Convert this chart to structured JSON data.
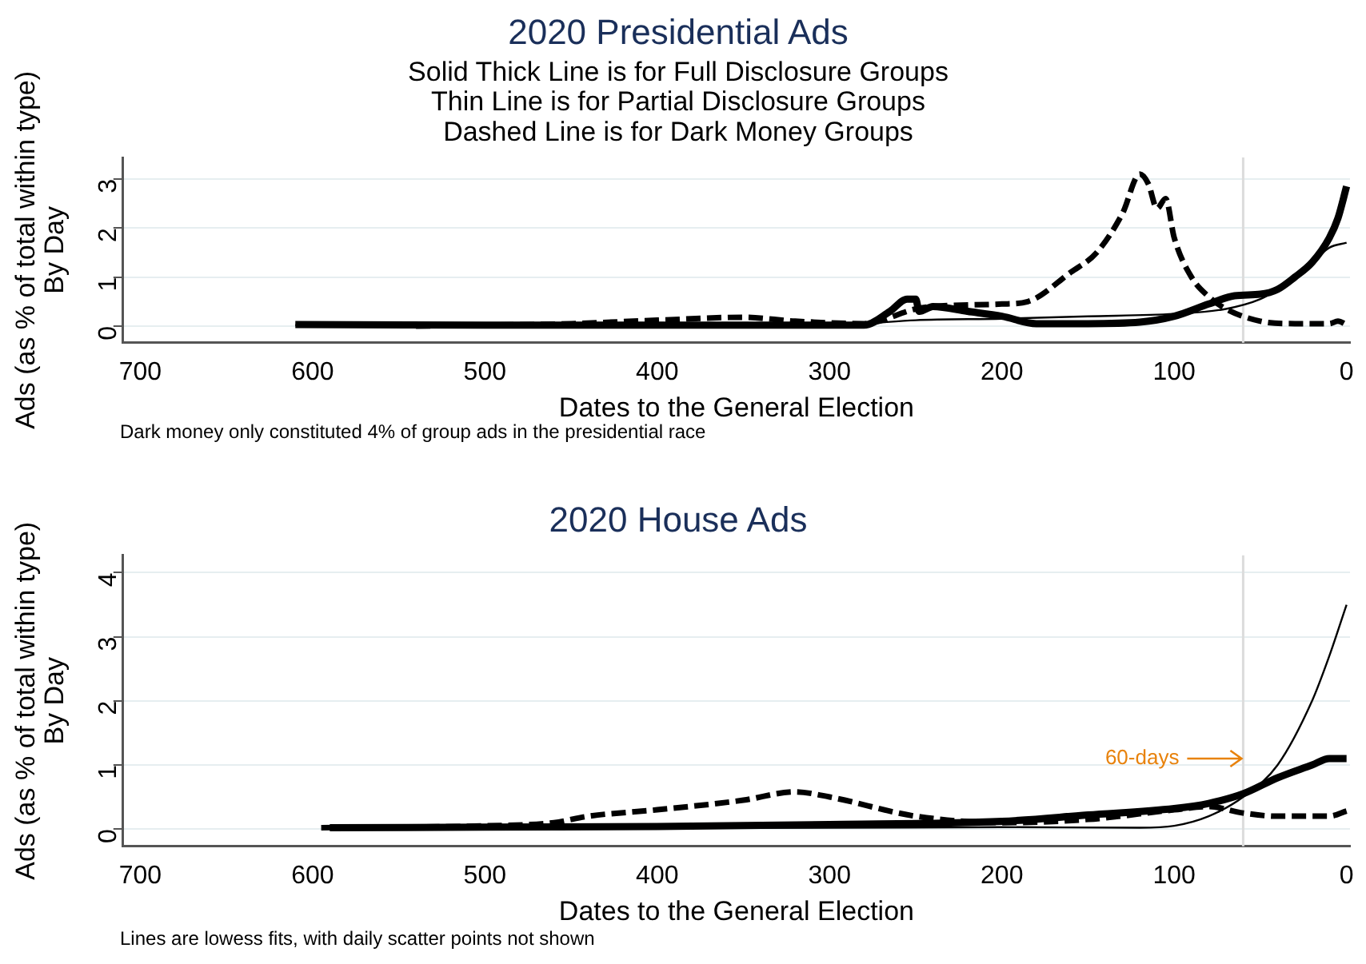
{
  "chart_data": [
    {
      "type": "line",
      "title": "2020 Presidential Ads",
      "subtitle": "Solid Thick Line is for Full Disclosure Groups\nThin Line is for Partial Disclosure Groups\nDashed Line is for Dark Money Groups",
      "xlabel": "Dates to the General Election",
      "ylabel": "Ads (as % of total within type)\nBy Day",
      "xlim": [
        710,
        -2
      ],
      "xticks": [
        700,
        600,
        500,
        400,
        300,
        200,
        100,
        0
      ],
      "ylim": [
        -0.34,
        3.44
      ],
      "yticks": [
        0,
        1,
        2,
        3
      ],
      "grid": "y",
      "legend": false,
      "marker": "none",
      "ref_lines": [
        {
          "axis": "x",
          "value": 60,
          "color": "#dcdcdc"
        }
      ],
      "annotations": [
        "Dark money only constituted 4% of group ads in the presidential race"
      ],
      "series": [
        {
          "color": "#000000",
          "line_style": "solid",
          "x": [
            610,
            500,
            400,
            300,
            280,
            265,
            255,
            250,
            248,
            240,
            220,
            200,
            180,
            150,
            120,
            100,
            80,
            65,
            50,
            40,
            30,
            20,
            10,
            5,
            0
          ],
          "values": [
            0.03,
            0.02,
            0.02,
            0.02,
            0.02,
            0.3,
            0.55,
            0.55,
            0.3,
            0.4,
            0.3,
            0.2,
            0.05,
            0.05,
            0.08,
            0.2,
            0.45,
            0.62,
            0.65,
            0.75,
            1.0,
            1.3,
            1.8,
            2.2,
            2.85
          ]
        },
        {
          "color": "#000000",
          "line_style": "solid",
          "x": [
            610,
            400,
            300,
            280,
            250,
            200,
            150,
            100,
            70,
            50,
            40,
            30,
            20,
            10,
            0
          ],
          "values": [
            0.02,
            0.02,
            0.02,
            0.05,
            0.12,
            0.15,
            0.2,
            0.25,
            0.35,
            0.55,
            0.75,
            1.0,
            1.3,
            1.6,
            1.7
          ]
        },
        {
          "color": "#000000",
          "line_style": "dashed",
          "x": [
            540,
            450,
            400,
            350,
            320,
            280,
            250,
            240,
            200,
            185,
            160,
            145,
            130,
            120,
            115,
            110,
            105,
            100,
            90,
            80,
            70,
            50,
            30,
            10,
            5,
            0
          ],
          "values": [
            0.0,
            0.05,
            0.12,
            0.18,
            0.1,
            0.05,
            0.35,
            0.4,
            0.45,
            0.5,
            1.1,
            1.5,
            2.3,
            3.1,
            2.9,
            2.4,
            2.6,
            1.8,
            1.0,
            0.6,
            0.35,
            0.1,
            0.05,
            0.05,
            0.1,
            0.03
          ]
        }
      ]
    },
    {
      "type": "line",
      "title": "2020 House Ads",
      "xlabel": "Dates to the General Election",
      "ylabel": "Ads (as % of total within type)\nBy Day",
      "xlim": [
        710,
        -2
      ],
      "xticks": [
        700,
        600,
        500,
        400,
        300,
        200,
        100,
        0
      ],
      "ylim": [
        -0.27,
        4.27
      ],
      "yticks": [
        0,
        1,
        2,
        3,
        4
      ],
      "grid": "y",
      "legend": false,
      "marker": "none",
      "ref_lines": [
        {
          "axis": "x",
          "value": 60,
          "color": "#dcdcdc"
        }
      ],
      "annotations": [
        {
          "text": "60-days",
          "x": 60,
          "y": 1.1
        },
        "Lines are lowess fits, with daily scatter points not shown"
      ],
      "series": [
        {
          "color": "#000000",
          "line_style": "solid",
          "x": [
            590,
            500,
            400,
            300,
            200,
            150,
            100,
            80,
            60,
            40,
            20,
            10,
            0
          ],
          "values": [
            0.02,
            0.03,
            0.04,
            0.07,
            0.12,
            0.22,
            0.32,
            0.4,
            0.55,
            0.8,
            1.0,
            1.1,
            1.1
          ]
        },
        {
          "color": "#000000",
          "line_style": "solid",
          "x": [
            590,
            300,
            200,
            120,
            100,
            80,
            60,
            40,
            20,
            10,
            0
          ],
          "values": [
            0.02,
            0.02,
            0.03,
            0.02,
            0.05,
            0.2,
            0.5,
            1.0,
            2.0,
            2.7,
            3.5
          ]
        },
        {
          "color": "#000000",
          "line_style": "dashed",
          "x": [
            595,
            500,
            460,
            440,
            400,
            350,
            320,
            300,
            250,
            200,
            150,
            100,
            80,
            60,
            40,
            20,
            10,
            0
          ],
          "values": [
            0.02,
            0.05,
            0.1,
            0.2,
            0.3,
            0.45,
            0.58,
            0.5,
            0.2,
            0.1,
            0.15,
            0.3,
            0.35,
            0.25,
            0.2,
            0.2,
            0.2,
            0.28
          ]
        }
      ]
    }
  ]
}
